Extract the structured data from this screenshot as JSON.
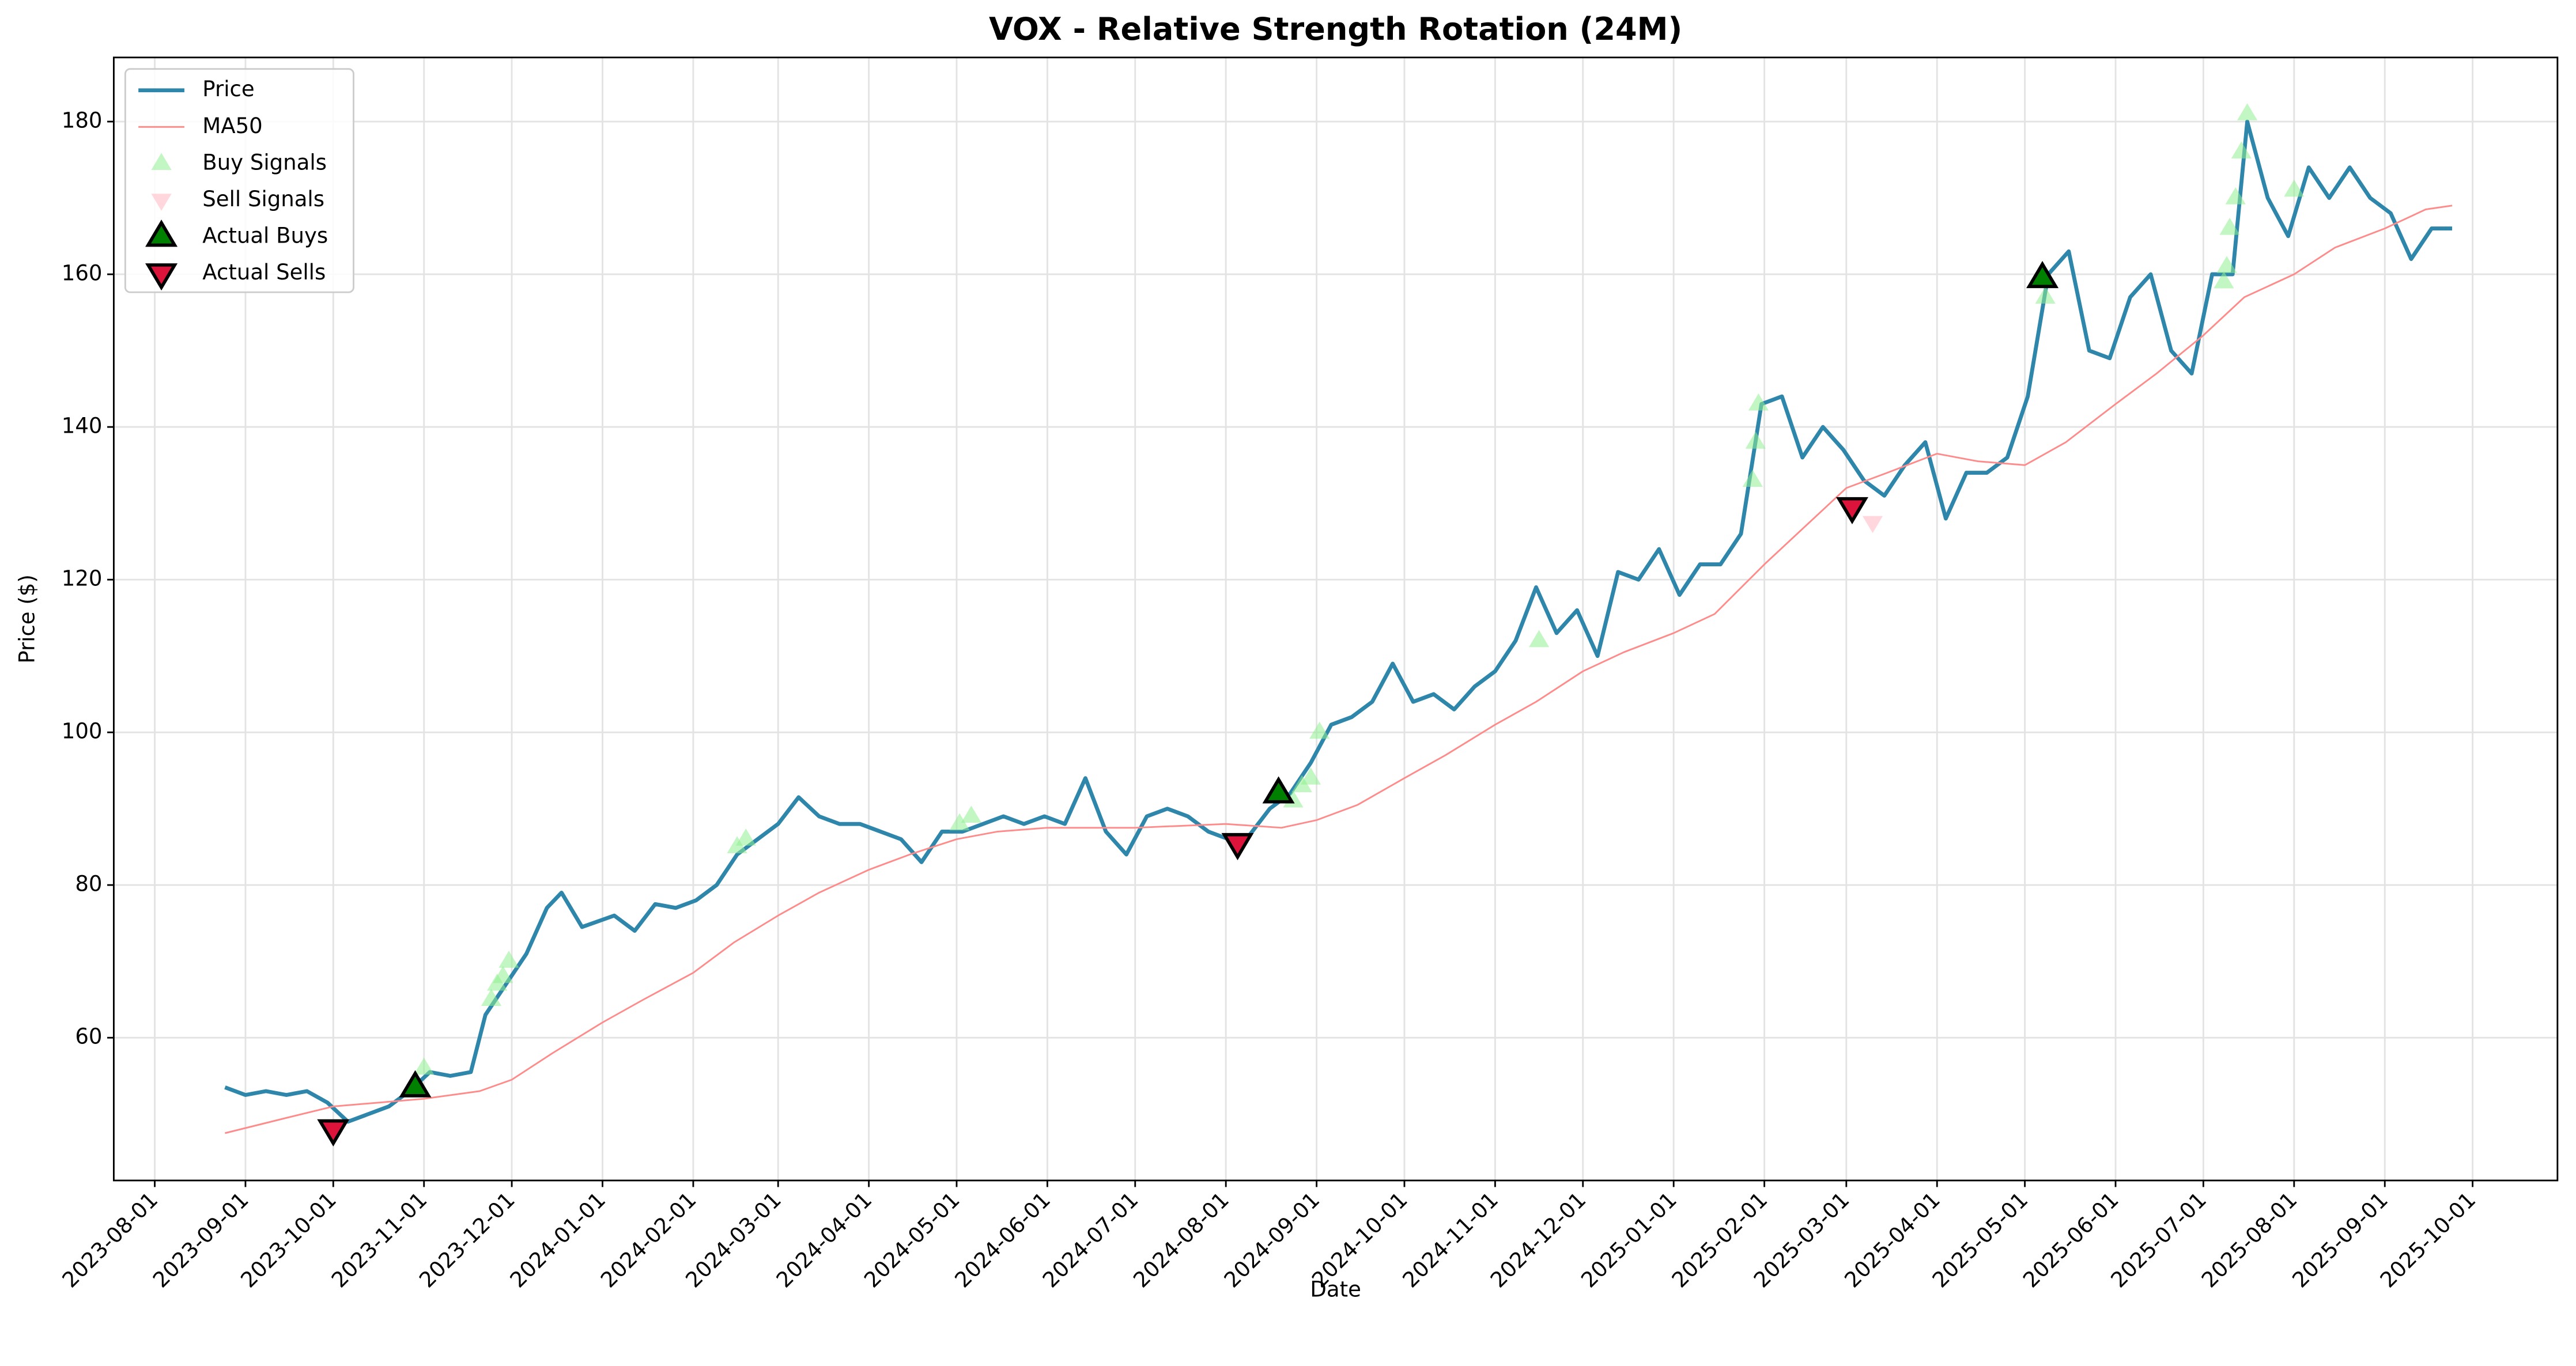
{
  "chart_data": {
    "type": "line",
    "title": "VOX - Relative Strength Rotation (24M)",
    "x_label": "Date",
    "y_label": "Price ($)",
    "xlim": [
      "2023-07-18",
      "2025-10-30"
    ],
    "xticks": [
      "2023-08-01",
      "2023-09-01",
      "2023-10-01",
      "2023-11-01",
      "2023-12-01",
      "2024-01-01",
      "2024-02-01",
      "2024-03-01",
      "2024-04-01",
      "2024-05-01",
      "2024-06-01",
      "2024-07-01",
      "2024-08-01",
      "2024-09-01",
      "2024-10-01",
      "2024-11-01",
      "2024-12-01",
      "2025-01-01",
      "2025-02-01",
      "2025-03-01",
      "2025-04-01",
      "2025-05-01",
      "2025-06-01",
      "2025-07-01",
      "2025-08-01",
      "2025-09-01",
      "2025-10-01"
    ],
    "ylim": [
      41.3,
      188.4
    ],
    "yticks": [
      60,
      80,
      100,
      120,
      140,
      160,
      180
    ],
    "grid": true,
    "legend": "upper left",
    "series": [
      {
        "name": "Price",
        "type": "line",
        "color": "#2e86ab",
        "x": [
          "2023-08-25",
          "2023-09-01",
          "2023-09-08",
          "2023-09-15",
          "2023-09-22",
          "2023-09-29",
          "2023-10-06",
          "2023-10-13",
          "2023-10-20",
          "2023-10-27",
          "2023-11-03",
          "2023-11-10",
          "2023-11-17",
          "2023-11-22",
          "2023-11-29",
          "2023-12-06",
          "2023-12-13",
          "2023-12-18",
          "2023-12-25",
          "2024-01-05",
          "2024-01-12",
          "2024-01-19",
          "2024-01-26",
          "2024-02-02",
          "2024-02-09",
          "2024-02-16",
          "2024-02-23",
          "2024-03-01",
          "2024-03-08",
          "2024-03-15",
          "2024-03-22",
          "2024-03-29",
          "2024-04-05",
          "2024-04-12",
          "2024-04-19",
          "2024-04-26",
          "2024-05-03",
          "2024-05-10",
          "2024-05-17",
          "2024-05-24",
          "2024-05-31",
          "2024-06-07",
          "2024-06-14",
          "2024-06-21",
          "2024-06-28",
          "2024-07-05",
          "2024-07-12",
          "2024-07-19",
          "2024-07-26",
          "2024-08-02",
          "2024-08-09",
          "2024-08-16",
          "2024-08-23",
          "2024-08-30",
          "2024-09-06",
          "2024-09-13",
          "2024-09-20",
          "2024-09-27",
          "2024-10-04",
          "2024-10-11",
          "2024-10-18",
          "2024-10-25",
          "2024-11-01",
          "2024-11-08",
          "2024-11-15",
          "2024-11-22",
          "2024-11-29",
          "2024-12-06",
          "2024-12-13",
          "2024-12-20",
          "2024-12-27",
          "2025-01-03",
          "2025-01-10",
          "2025-01-17",
          "2025-01-24",
          "2025-01-31",
          "2025-02-07",
          "2025-02-14",
          "2025-02-21",
          "2025-02-28",
          "2025-03-07",
          "2025-03-14",
          "2025-03-21",
          "2025-03-28",
          "2025-04-04",
          "2025-04-11",
          "2025-04-18",
          "2025-04-25",
          "2025-05-02",
          "2025-05-09",
          "2025-05-16",
          "2025-05-23",
          "2025-05-30",
          "2025-06-06",
          "2025-06-13",
          "2025-06-20",
          "2025-06-27",
          "2025-07-04",
          "2025-07-11",
          "2025-07-16",
          "2025-07-23",
          "2025-07-30",
          "2025-08-06",
          "2025-08-13",
          "2025-08-20",
          "2025-08-27",
          "2025-09-03",
          "2025-09-10",
          "2025-09-17",
          "2025-09-24"
        ],
        "values": [
          53.5,
          52.5,
          53,
          52.5,
          53,
          51.5,
          49,
          50,
          51,
          53,
          55.5,
          55,
          55.5,
          63,
          67,
          71,
          77,
          79,
          74.5,
          76,
          74,
          77.5,
          77,
          78,
          80,
          84,
          86,
          88,
          91.5,
          89,
          88,
          88,
          87,
          86,
          83,
          87,
          87,
          88,
          89,
          88,
          89,
          88,
          94,
          87,
          84,
          89,
          90,
          89,
          87,
          86,
          86.5,
          90,
          92,
          96,
          101,
          102,
          104,
          109,
          104,
          105,
          103,
          106,
          108,
          112,
          119,
          113,
          116,
          110,
          121,
          120,
          124,
          118,
          122,
          122,
          126,
          143,
          144,
          136,
          140,
          137,
          133,
          131,
          135,
          138,
          128,
          134,
          134,
          136,
          144,
          160,
          163,
          150,
          149,
          157,
          160,
          150,
          147,
          160,
          160,
          180,
          170,
          165,
          174,
          170,
          174,
          170,
          168,
          162,
          166,
          166
        ]
      },
      {
        "name": "MA50",
        "type": "line",
        "color": "#ff8a8a",
        "x": [
          "2023-08-25",
          "2023-09-15",
          "2023-10-01",
          "2023-11-01",
          "2023-11-20",
          "2023-12-01",
          "2023-12-15",
          "2024-01-01",
          "2024-01-15",
          "2024-02-01",
          "2024-02-15",
          "2024-03-01",
          "2024-03-15",
          "2024-04-01",
          "2024-04-15",
          "2024-05-01",
          "2024-05-15",
          "2024-06-01",
          "2024-07-01",
          "2024-08-01",
          "2024-08-20",
          "2024-09-01",
          "2024-09-15",
          "2024-10-01",
          "2024-10-15",
          "2024-11-01",
          "2024-11-15",
          "2024-12-01",
          "2024-12-15",
          "2025-01-01",
          "2025-01-15",
          "2025-02-01",
          "2025-02-15",
          "2025-03-01",
          "2025-03-15",
          "2025-04-01",
          "2025-04-15",
          "2025-05-01",
          "2025-05-15",
          "2025-06-01",
          "2025-06-15",
          "2025-07-01",
          "2025-07-15",
          "2025-08-01",
          "2025-08-15",
          "2025-09-01",
          "2025-09-15",
          "2025-09-24"
        ],
        "values": [
          47.5,
          49.5,
          51,
          52,
          53,
          54.5,
          58,
          62,
          65,
          68.5,
          72.5,
          76,
          79,
          82,
          84,
          86,
          87,
          87.5,
          87.5,
          88,
          87.5,
          88.5,
          90.5,
          94,
          97,
          101,
          104,
          108,
          110.5,
          113,
          115.5,
          122,
          127,
          132,
          134,
          136.5,
          135.5,
          135,
          138,
          143,
          147,
          152,
          157,
          160,
          163.5,
          166,
          168.5,
          169
        ]
      },
      {
        "name": "Buy Signals",
        "type": "scatter",
        "color": "#90ee90",
        "marker": "up",
        "x": [
          "2023-11-01",
          "2023-11-24",
          "2023-11-26",
          "2023-11-28",
          "2023-11-30",
          "2024-02-16",
          "2024-02-19",
          "2024-05-02",
          "2024-05-06",
          "2024-08-24",
          "2024-08-27",
          "2024-08-30",
          "2024-09-02",
          "2024-11-16",
          "2025-01-28",
          "2025-01-29",
          "2025-01-30",
          "2025-05-08",
          "2025-07-08",
          "2025-07-09",
          "2025-07-10",
          "2025-07-12",
          "2025-07-14",
          "2025-07-16",
          "2025-08-01"
        ],
        "values": [
          56,
          65,
          67,
          68,
          70,
          85,
          86,
          88,
          89,
          91,
          93,
          94,
          100,
          112,
          133,
          138,
          143,
          157,
          159,
          161,
          166,
          170,
          176,
          181,
          171
        ]
      },
      {
        "name": "Sell Signals",
        "type": "scatter",
        "color": "#ffb6c1",
        "marker": "down",
        "x": [
          "2025-03-10"
        ],
        "values": [
          127.5
        ]
      },
      {
        "name": "Actual Buys",
        "type": "scatter",
        "color": "#008000",
        "marker": "up",
        "edge": "#000000",
        "x": [
          "2023-10-29",
          "2024-08-19",
          "2025-05-07"
        ],
        "values": [
          53.5,
          92,
          159.5
        ]
      },
      {
        "name": "Actual Sells",
        "type": "scatter",
        "color": "#dc143c",
        "marker": "down",
        "edge": "#000000",
        "x": [
          "2023-10-01",
          "2024-08-05",
          "2025-03-03"
        ],
        "values": [
          48,
          85.5,
          129.5
        ]
      }
    ]
  }
}
